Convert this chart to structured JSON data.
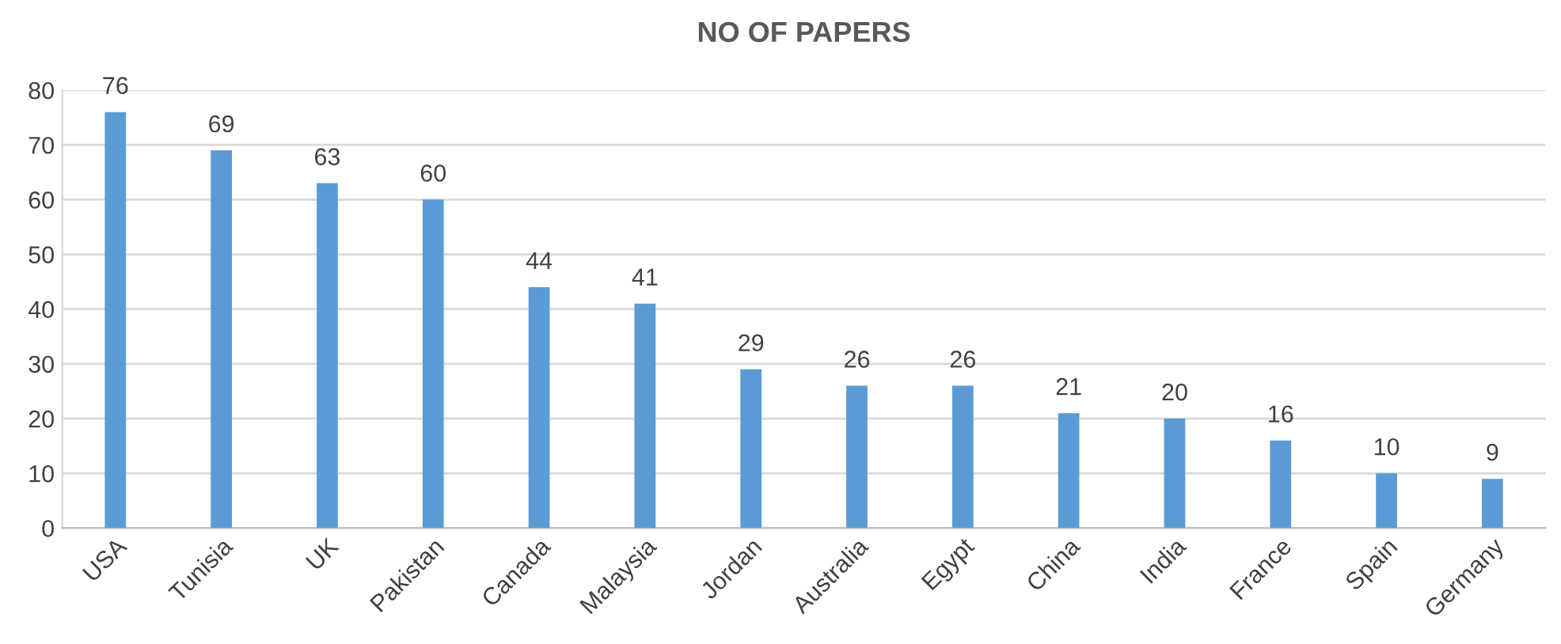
{
  "chart_data": {
    "type": "bar",
    "title": "NO OF PAPERS",
    "categories": [
      "USA",
      "Tunisia",
      "UK",
      "Pakistan",
      "Canada",
      "Malaysia",
      "Jordan",
      "Australia",
      "Egypt",
      "China",
      "India",
      "France",
      "Spain",
      "Germany"
    ],
    "values": [
      76,
      69,
      63,
      60,
      44,
      41,
      29,
      26,
      26,
      21,
      20,
      16,
      10,
      9
    ],
    "color": "#5b9bd5",
    "ylim": [
      0,
      80
    ],
    "yticks": [
      0,
      10,
      20,
      30,
      40,
      50,
      60,
      70,
      80
    ],
    "grid": "y",
    "data_labels": true
  }
}
